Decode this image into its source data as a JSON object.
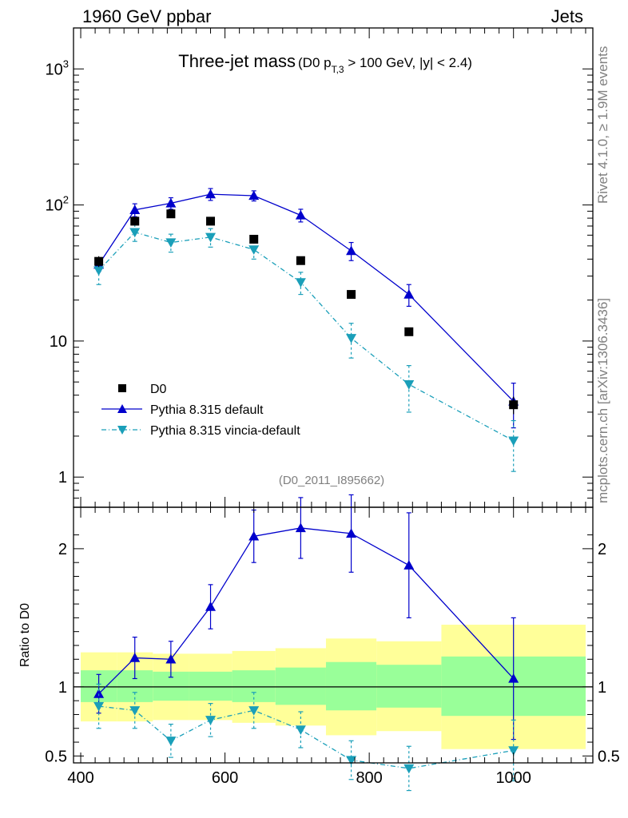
{
  "header": {
    "left": "1960 GeV ppbar",
    "right": "Jets"
  },
  "side_labels": {
    "rivet": "Rivet 4.1.0, ≥ 1.9M events",
    "mcplots": "mcplots.cern.ch [arXiv:1306.3436]"
  },
  "colors": {
    "default": "#0000cc",
    "vincia": "#1a9fb9",
    "data": "#000000",
    "band_outer": "#ffff99",
    "band_inner": "#99ff99"
  },
  "chart_data": [
    {
      "type": "scatter",
      "panel": "main",
      "title": "Three-jet mass",
      "subtitle": "(D0 p",
      "subtitle_sub": "T,3",
      "subtitle_rest": " > 100 GeV, |y| < 2.4)",
      "analysis_id": "(D0_2011_I895662)",
      "yscale": "log",
      "ylim": [
        0.6,
        2000
      ],
      "xlim": [
        390,
        1110
      ],
      "yticks": [
        {
          "label": "1",
          "value": 1
        },
        {
          "label": "10",
          "value": 10
        },
        {
          "label": "10",
          "sup": "2",
          "value": 100
        },
        {
          "label": "10",
          "sup": "3",
          "value": 1000
        }
      ],
      "legend": [
        {
          "key": "data",
          "label": "D0"
        },
        {
          "key": "default",
          "label": "Pythia 8.315 default"
        },
        {
          "key": "vincia",
          "label": "Pythia 8.315 vincia-default"
        }
      ],
      "data": {
        "x": [
          425,
          475,
          525,
          580,
          640,
          705,
          775,
          855,
          1000
        ],
        "y": [
          38.5,
          76,
          86,
          76,
          56,
          39,
          22,
          11.7,
          3.4
        ],
        "err": [
          3.5,
          5,
          5,
          4,
          3,
          2,
          1.2,
          0.7,
          0.5
        ]
      },
      "series": [
        {
          "name": "Pythia 8.315 default",
          "key": "default",
          "x": [
            425,
            475,
            525,
            580,
            640,
            705,
            775,
            855,
            1000
          ],
          "y": [
            36.5,
            92,
            103,
            120,
            117,
            84,
            46,
            22,
            3.6
          ],
          "err": [
            4,
            10,
            10,
            12,
            10,
            9,
            7,
            4,
            1.3
          ]
        },
        {
          "name": "Pythia 8.315 vincia-default",
          "key": "vincia",
          "x": [
            425,
            475,
            525,
            580,
            640,
            705,
            775,
            855,
            1000
          ],
          "y": [
            33,
            63,
            53,
            58,
            47,
            27,
            10.5,
            4.8,
            1.85
          ],
          "err": [
            7,
            9,
            8,
            9,
            7,
            5,
            3,
            1.8,
            0.75
          ]
        }
      ]
    },
    {
      "type": "scatter",
      "panel": "ratio",
      "ylabel": "Ratio to D0",
      "ylim": [
        0.45,
        2.3
      ],
      "xlim": [
        390,
        1110
      ],
      "xticks": [
        400,
        600,
        800,
        1000
      ],
      "yticks": [
        0.5,
        1,
        2
      ],
      "bands": [
        {
          "x0": 400,
          "x1": 450,
          "outer": [
            0.75,
            1.25
          ],
          "inner": [
            0.89,
            1.12
          ]
        },
        {
          "x0": 450,
          "x1": 500,
          "outer": [
            0.75,
            1.25
          ],
          "inner": [
            0.89,
            1.12
          ]
        },
        {
          "x0": 500,
          "x1": 550,
          "outer": [
            0.76,
            1.24
          ],
          "inner": [
            0.9,
            1.11
          ]
        },
        {
          "x0": 550,
          "x1": 610,
          "outer": [
            0.76,
            1.24
          ],
          "inner": [
            0.9,
            1.11
          ]
        },
        {
          "x0": 610,
          "x1": 670,
          "outer": [
            0.74,
            1.26
          ],
          "inner": [
            0.89,
            1.12
          ]
        },
        {
          "x0": 670,
          "x1": 740,
          "outer": [
            0.72,
            1.28
          ],
          "inner": [
            0.87,
            1.14
          ]
        },
        {
          "x0": 740,
          "x1": 810,
          "outer": [
            0.65,
            1.35
          ],
          "inner": [
            0.83,
            1.18
          ]
        },
        {
          "x0": 810,
          "x1": 900,
          "outer": [
            0.68,
            1.33
          ],
          "inner": [
            0.85,
            1.16
          ]
        },
        {
          "x0": 900,
          "x1": 1100,
          "outer": [
            0.55,
            1.45
          ],
          "inner": [
            0.79,
            1.22
          ]
        }
      ],
      "series": [
        {
          "name": "Pythia 8.315 default",
          "key": "default",
          "x": [
            425,
            475,
            525,
            580,
            640,
            705,
            775,
            855,
            1000
          ],
          "y": [
            0.95,
            1.21,
            1.2,
            1.58,
            2.09,
            2.15,
            2.11,
            1.88,
            1.06
          ],
          "err": [
            0.14,
            0.15,
            0.13,
            0.16,
            0.19,
            0.22,
            0.28,
            0.38,
            0.44
          ]
        },
        {
          "name": "Pythia 8.315 vincia-default",
          "key": "vincia",
          "x": [
            425,
            475,
            525,
            580,
            640,
            705,
            775,
            855,
            1000
          ],
          "y": [
            0.86,
            0.83,
            0.61,
            0.76,
            0.83,
            0.69,
            0.47,
            0.41,
            0.54
          ],
          "err": [
            0.16,
            0.13,
            0.12,
            0.12,
            0.13,
            0.13,
            0.14,
            0.16,
            0.22
          ]
        }
      ]
    }
  ]
}
